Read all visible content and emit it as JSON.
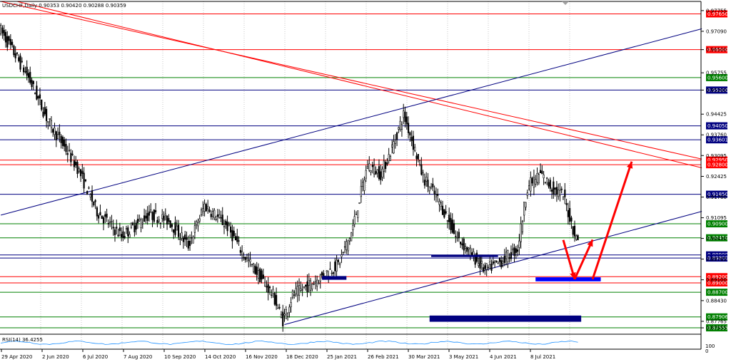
{
  "header": {
    "title": "USDCHF,Daily  0.90353 0.90420 0.90288 0.90359",
    "rsi_label": "RSI(14) 36.4255"
  },
  "colors": {
    "background": "#ffffff",
    "candle": "#000000",
    "red_line": "#ff0000",
    "blue_line": "#000080",
    "green_line": "#008000",
    "zone": "#000080",
    "target_zone": "#0000ff",
    "arrow": "#ff0000"
  },
  "chart_data": {
    "type": "candlestick",
    "symbol": "USDCHF",
    "timeframe": "Daily",
    "ohlc_last": {
      "open": 0.90353,
      "high": 0.9042,
      "low": 0.90288,
      "close": 0.90359
    },
    "ylim": [
      0.8735,
      0.9805
    ],
    "y_ticks": [
      "0.97755",
      "0.97090",
      "0.96500",
      "0.95755",
      "0.95200",
      "0.94425",
      "0.93760",
      "0.93095",
      "0.92425",
      "0.91760",
      "0.91095",
      "0.90430",
      "0.89765",
      "0.89100",
      "0.88430",
      "0.87765",
      "0.87555"
    ],
    "x_ticks": [
      "29 Apr 2020",
      "2 Jun 2020",
      "6 Jul 2020",
      "7 Aug 2020",
      "10 Sep 2020",
      "14 Oct 2020",
      "16 Nov 2020",
      "18 Dec 2020",
      "25 Jan 2021",
      "26 Feb 2021",
      "30 Mar 2021",
      "3 May 2021",
      "4 Jun 2021",
      "8 Jul 2021"
    ],
    "price_path": [
      [
        0,
        0.972
      ],
      [
        18,
        0.956
      ],
      [
        30,
        0.942
      ],
      [
        48,
        0.927
      ],
      [
        60,
        0.913
      ],
      [
        75,
        0.905
      ],
      [
        92,
        0.912
      ],
      [
        104,
        0.91
      ],
      [
        116,
        0.902
      ],
      [
        126,
        0.915
      ],
      [
        140,
        0.908
      ],
      [
        150,
        0.899
      ],
      [
        160,
        0.892
      ],
      [
        168,
        0.886
      ],
      [
        174,
        0.878
      ],
      [
        180,
        0.886
      ],
      [
        192,
        0.89
      ],
      [
        208,
        0.896
      ],
      [
        216,
        0.906
      ],
      [
        226,
        0.928
      ],
      [
        234,
        0.925
      ],
      [
        240,
        0.932
      ],
      [
        248,
        0.944
      ],
      [
        252,
        0.938
      ],
      [
        260,
        0.924
      ],
      [
        270,
        0.916
      ],
      [
        280,
        0.905
      ],
      [
        290,
        0.899
      ],
      [
        298,
        0.894
      ],
      [
        308,
        0.897
      ],
      [
        318,
        0.901
      ],
      [
        324,
        0.921
      ],
      [
        332,
        0.925
      ],
      [
        340,
        0.92
      ],
      [
        346,
        0.918
      ],
      [
        354,
        0.904
      ]
    ],
    "horizontal_levels": [
      {
        "value": 0.9765,
        "color": "red",
        "label": "0.97650"
      },
      {
        "value": 0.965,
        "color": "red",
        "label": "0.96500"
      },
      {
        "value": 0.956,
        "color": "green",
        "label": "0.95600"
      },
      {
        "value": 0.952,
        "color": "blue",
        "label": "0.95200"
      },
      {
        "value": 0.9405,
        "color": "blue",
        "label": "0.94050"
      },
      {
        "value": 0.93601,
        "color": "blue",
        "label": "0.93601"
      },
      {
        "value": 0.9295,
        "color": "red",
        "label": "0.92950"
      },
      {
        "value": 0.928,
        "color": "red",
        "label": "0.92800"
      },
      {
        "value": 0.9185,
        "color": "blue",
        "label": "0.91850"
      },
      {
        "value": 0.909,
        "color": "green",
        "label": "0.90900"
      },
      {
        "value": 0.9045,
        "color": "green",
        "label": "0.90450"
      },
      {
        "value": 0.899,
        "color": "blue",
        "label": "0.89900"
      },
      {
        "value": 0.898,
        "color": "blue",
        "label": "0.89800"
      },
      {
        "value": 0.892,
        "color": "red",
        "label": "0.89200"
      },
      {
        "value": 0.89,
        "color": "red",
        "label": "0.89000"
      },
      {
        "value": 0.887,
        "color": "green",
        "label": "0.88700"
      },
      {
        "value": 0.87906,
        "color": "green",
        "label": "0.87906"
      },
      {
        "value": 0.87555,
        "color": "green",
        "label": "0.87555"
      }
    ],
    "trendlines": [
      {
        "color": "red",
        "from": [
          0,
          0.9805
        ],
        "to": [
          430,
          0.9298
        ]
      },
      {
        "color": "red",
        "from": [
          10,
          0.9805
        ],
        "to": [
          430,
          0.927
        ]
      },
      {
        "color": "blue",
        "from": [
          0,
          0.9118
        ],
        "to": [
          430,
          0.9717
        ]
      },
      {
        "color": "blue",
        "from": [
          174,
          0.8766
        ],
        "to": [
          430,
          0.913
        ]
      }
    ],
    "zones": [
      {
        "color": "navy",
        "x": [
          197,
          212
        ],
        "y": [
          0.891,
          0.8922
        ]
      },
      {
        "color": "navy",
        "x": [
          264,
          305
        ],
        "y": [
          0.8985,
          0.899
        ]
      },
      {
        "color": "navy",
        "x": [
          263,
          356
        ],
        "y": [
          0.8775,
          0.8795
        ]
      },
      {
        "color": "blue",
        "x": [
          328,
          368
        ],
        "y": [
          0.8905,
          0.8918
        ]
      }
    ],
    "arrows": [
      {
        "from": [
          345,
          0.9038
        ],
        "to": [
          352,
          0.8912
        ]
      },
      {
        "from": [
          352,
          0.8912
        ],
        "to": [
          363,
          0.9039
        ]
      },
      {
        "from": [
          363,
          0.8912
        ],
        "to": [
          387,
          0.929
        ]
      }
    ],
    "rsi": {
      "period": 14,
      "value": 36.4255,
      "ylim": [
        0,
        100
      ]
    }
  }
}
